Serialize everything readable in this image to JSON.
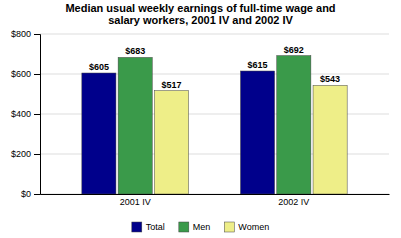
{
  "chart_data": {
    "type": "bar",
    "title": "Median usual weekly earnings of full-time wage and\nsalary workers, 2001 IV and 2002 IV",
    "categories": [
      "2001 IV",
      "2002 IV"
    ],
    "series": [
      {
        "name": "Total",
        "color": "#00008B",
        "values": [
          605,
          615
        ],
        "value_labels": [
          "$605",
          "$615"
        ]
      },
      {
        "name": "Men",
        "color": "#3A9A4A",
        "values": [
          683,
          692
        ],
        "value_labels": [
          "$683",
          "$692"
        ]
      },
      {
        "name": "Women",
        "color": "#EEEE88",
        "values": [
          517,
          543
        ],
        "value_labels": [
          "$517",
          "$543"
        ]
      }
    ],
    "ylim": [
      0,
      800
    ],
    "yticks": [
      {
        "value": 0,
        "label": "$0"
      },
      {
        "value": 200,
        "label": "$200"
      },
      {
        "value": 400,
        "label": "$400"
      },
      {
        "value": 600,
        "label": "$600"
      },
      {
        "value": 800,
        "label": "$800"
      }
    ],
    "grid": true,
    "legend": "bottom",
    "data_labels": true
  }
}
